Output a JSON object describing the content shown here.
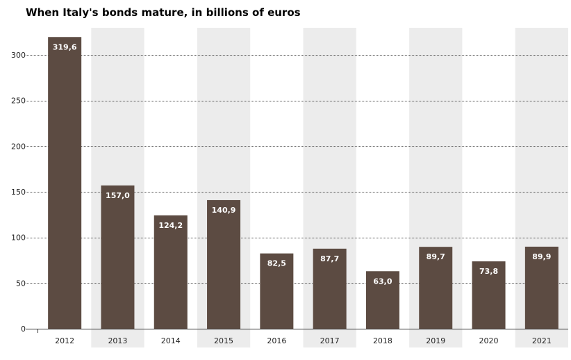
{
  "chart_data": {
    "type": "bar",
    "title": "When Italy's bonds mature, in billions of euros",
    "xlabel": "",
    "ylabel": "",
    "categories": [
      "2012",
      "2013",
      "2014",
      "2015",
      "2016",
      "2017",
      "2018",
      "2019",
      "2020",
      "2021"
    ],
    "values": [
      319.6,
      157.0,
      124.2,
      140.9,
      82.5,
      87.7,
      63.0,
      89.7,
      73.8,
      89.9
    ],
    "value_labels": [
      "319,6",
      "157,0",
      "124,2",
      "140,9",
      "82,5",
      "87,7",
      "63,0",
      "89,7",
      "73,8",
      "89,9"
    ],
    "y_ticks": [
      0,
      50,
      100,
      150,
      200,
      250,
      300
    ],
    "ylim": [
      0,
      300
    ],
    "grid": true,
    "legend": "none",
    "colors": {
      "bar": "#5c4b42",
      "alt_band": "#ececec",
      "grid": "#555555",
      "axis": "#333333"
    }
  }
}
